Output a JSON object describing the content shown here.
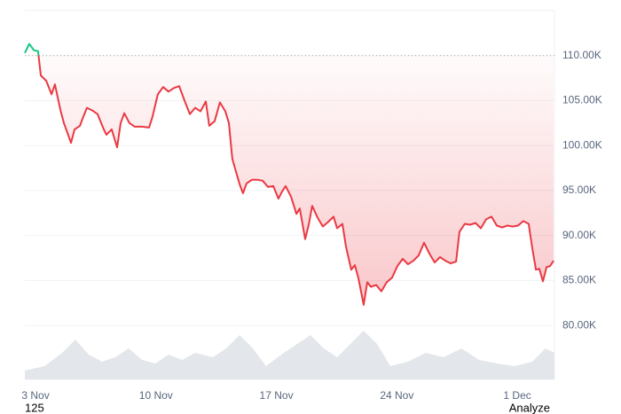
{
  "chart_data": {
    "type": "line",
    "x": [
      2.38,
      2.64,
      2.9,
      3.15,
      3.31,
      3.62,
      3.93,
      4.13,
      4.44,
      4.65,
      4.86,
      5.06,
      5.27,
      5.58,
      5.78,
      5.99,
      6.3,
      6.61,
      6.92,
      7.12,
      7.43,
      7.74,
      7.95,
      8.16,
      8.46,
      8.77,
      9.19,
      9.6,
      9.8,
      10.11,
      10.42,
      10.73,
      11.04,
      11.35,
      11.66,
      11.97,
      12.28,
      12.59,
      12.9,
      13.1,
      13.41,
      13.72,
      14.03,
      14.24,
      14.44,
      14.65,
      14.86,
      15.06,
      15.27,
      15.58,
      15.89,
      16.2,
      16.51,
      16.82,
      17.12,
      17.33,
      17.54,
      17.85,
      18.16,
      18.36,
      18.67,
      18.88,
      19.08,
      19.39,
      19.7,
      20.01,
      20.32,
      20.53,
      20.84,
      21.04,
      21.35,
      21.56,
      21.76,
      22.07,
      22.28,
      22.49,
      22.8,
      23.1,
      23.41,
      23.72,
      24.03,
      24.34,
      24.65,
      24.96,
      25.27,
      25.58,
      25.89,
      26.2,
      26.51,
      26.82,
      27.13,
      27.44,
      27.64,
      27.95,
      28.26,
      28.57,
      28.88,
      29.19,
      29.5,
      29.81,
      30.12,
      30.43,
      30.73,
      31.04,
      31.35,
      31.66,
      31.87,
      32.08,
      32.28,
      32.49,
      32.7,
      32.9,
      33.11
    ],
    "series": [
      {
        "color": "#ea3943",
        "up_color": "#16c784",
        "values": [
          110300,
          111300,
          110600,
          110500,
          107800,
          107200,
          105700,
          106800,
          104000,
          102500,
          101400,
          100300,
          101800,
          102200,
          103200,
          104200,
          103900,
          103500,
          102000,
          101200,
          101800,
          99800,
          102500,
          103600,
          102500,
          102100,
          102100,
          102000,
          103200,
          105700,
          106500,
          106000,
          106400,
          106600,
          105000,
          103500,
          104200,
          103800,
          104900,
          102200,
          102700,
          104800,
          103800,
          102500,
          98500,
          97100,
          95700,
          94700,
          95800,
          96200,
          96200,
          96100,
          95400,
          95500,
          94100,
          94900,
          95500,
          94300,
          92400,
          93000,
          89600,
          91200,
          93300,
          92000,
          91000,
          91500,
          92100,
          90800,
          91300,
          88800,
          86200,
          86700,
          85300,
          82300,
          84800,
          84300,
          84500,
          83800,
          84800,
          85300,
          86600,
          87400,
          86800,
          87200,
          87800,
          89200,
          88000,
          87000,
          87600,
          87200,
          86900,
          87100,
          90400,
          91300,
          91200,
          91400,
          90800,
          91800,
          92100,
          91100,
          90900,
          91100,
          91000,
          91100,
          91600,
          91300,
          88600,
          86200,
          86300,
          84900,
          86500,
          86600,
          87200
        ]
      },
      {
        "axis": "y2",
        "color": "#e3e6ea",
        "x": [
          2.38,
          3.52,
          4.55,
          5.32,
          6.09,
          6.87,
          7.64,
          8.41,
          9.19,
          9.96,
          10.73,
          11.51,
          12.28,
          13.31,
          14.08,
          14.86,
          15.63,
          16.4,
          17.43,
          18.21,
          18.98,
          19.75,
          20.53,
          21.3,
          22.07,
          22.85,
          23.62,
          24.65,
          25.68,
          26.71,
          27.75,
          28.78,
          29.81,
          30.84,
          31.87,
          32.64,
          33.16
        ],
        "values": [
          10,
          15,
          30,
          45,
          28,
          20,
          25,
          35,
          22,
          18,
          28,
          22,
          30,
          25,
          35,
          50,
          35,
          15,
          30,
          40,
          50,
          35,
          25,
          40,
          55,
          40,
          15,
          20,
          30,
          25,
          35,
          22,
          18,
          15,
          20,
          35,
          30
        ]
      }
    ],
    "baseline": 110000,
    "xlim": [
      2.38,
      33.16
    ],
    "xticks": [
      {
        "value": 3,
        "label": "3 Nov"
      },
      {
        "value": 10,
        "label": "10 Nov"
      },
      {
        "value": 17,
        "label": "17 Nov"
      },
      {
        "value": 24,
        "label": "24 Nov"
      },
      {
        "value": 31,
        "label": "1 Dec"
      }
    ],
    "ylim": [
      74000,
      115000
    ],
    "yticks": [
      {
        "value": 80000,
        "label": "80.00K"
      },
      {
        "value": 85000,
        "label": "85.00K"
      },
      {
        "value": 90000,
        "label": "90.00K"
      },
      {
        "value": 95000,
        "label": "95.00K"
      },
      {
        "value": 100000,
        "label": "100.00K"
      },
      {
        "value": 105000,
        "label": "105.00K"
      },
      {
        "value": 110000,
        "label": "110.00K"
      }
    ],
    "y2lim": [
      0,
      100
    ],
    "grid": true,
    "annotations": [
      "125",
      "Analyze"
    ]
  }
}
